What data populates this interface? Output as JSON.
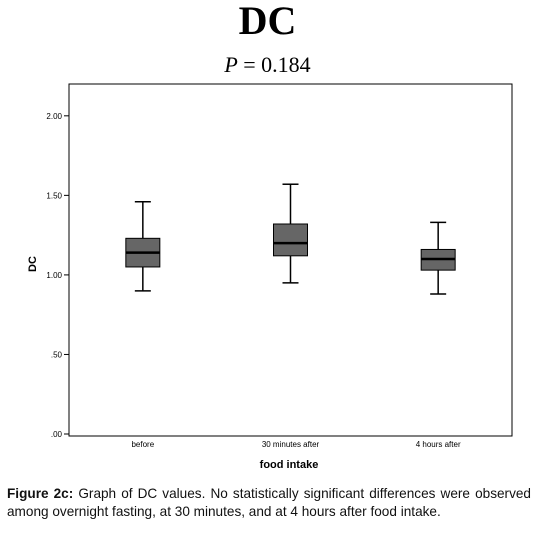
{
  "title": "DC",
  "subtitle": {
    "var": "P",
    "rest": " = 0.184"
  },
  "caption": {
    "label": "Figure 2c:",
    "text": " Graph of DC values. No statistically significant differences were observed among overnight fasting, at 30 minutes, and at 4 hours after food intake."
  },
  "chart_data": {
    "type": "box",
    "xlabel": "food intake",
    "ylabel": "DC",
    "ylim": [
      0,
      2.2
    ],
    "yticks": [
      0.0,
      0.5,
      1.0,
      1.5,
      2.0
    ],
    "ytick_labels": [
      ".00",
      ".50",
      "1.00",
      "1.50",
      "2.00"
    ],
    "grid": false,
    "categories": [
      "before",
      "30 minutes after",
      "4 hours after"
    ],
    "boxes": [
      {
        "whisker_low": 0.9,
        "q1": 1.05,
        "median": 1.14,
        "q3": 1.23,
        "whisker_high": 1.46
      },
      {
        "whisker_low": 0.95,
        "q1": 1.12,
        "median": 1.2,
        "q3": 1.32,
        "whisker_high": 1.57
      },
      {
        "whisker_low": 0.88,
        "q1": 1.03,
        "median": 1.1,
        "q3": 1.16,
        "whisker_high": 1.33
      }
    ],
    "colors": {
      "box_fill": "#666666",
      "line": "#000000"
    }
  }
}
